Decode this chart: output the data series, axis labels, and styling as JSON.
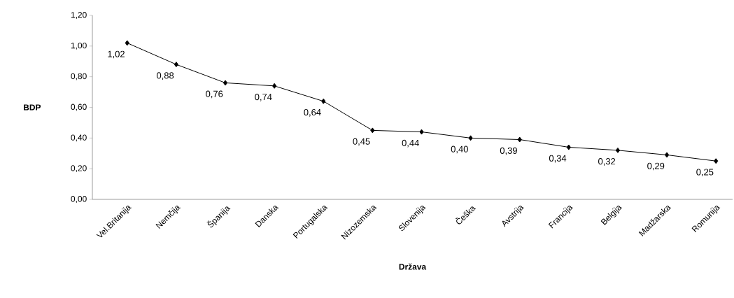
{
  "chart_data": {
    "type": "line",
    "xlabel": "Država",
    "ylabel": "BDP",
    "categories": [
      "Vel.Britanija",
      "Nemčija",
      "Španija",
      "Danska",
      "Portugalska",
      "Nizozemska",
      "Slovenija",
      "Češka",
      "Avstrija",
      "Francija",
      "Belgija",
      "Madžarska",
      "Romunija"
    ],
    "series": [
      {
        "color": "#000000",
        "values": [
          1.02,
          0.88,
          0.76,
          0.74,
          0.64,
          0.45,
          0.44,
          0.4,
          0.39,
          0.34,
          0.32,
          0.29,
          0.25
        ],
        "value_labels": [
          "1,02",
          "0,88",
          "0,76",
          "0,74",
          "0,64",
          "0,45",
          "0,44",
          "0,40",
          "0,39",
          "0,34",
          "0,32",
          "0,29",
          "0,25"
        ]
      }
    ],
    "ylim": [
      0,
      1.2
    ],
    "yticks": [
      {
        "value": 0,
        "label": "0,00"
      },
      {
        "value": 0.2,
        "label": "0,20"
      },
      {
        "value": 0.4,
        "label": "0,40"
      },
      {
        "value": 0.6,
        "label": "0,60"
      },
      {
        "value": 0.8,
        "label": "0,80"
      },
      {
        "value": 1.0,
        "label": "1,00"
      },
      {
        "value": 1.2,
        "label": "1,20"
      }
    ],
    "marker": "diamond",
    "line_style": "solid",
    "grid": false
  }
}
